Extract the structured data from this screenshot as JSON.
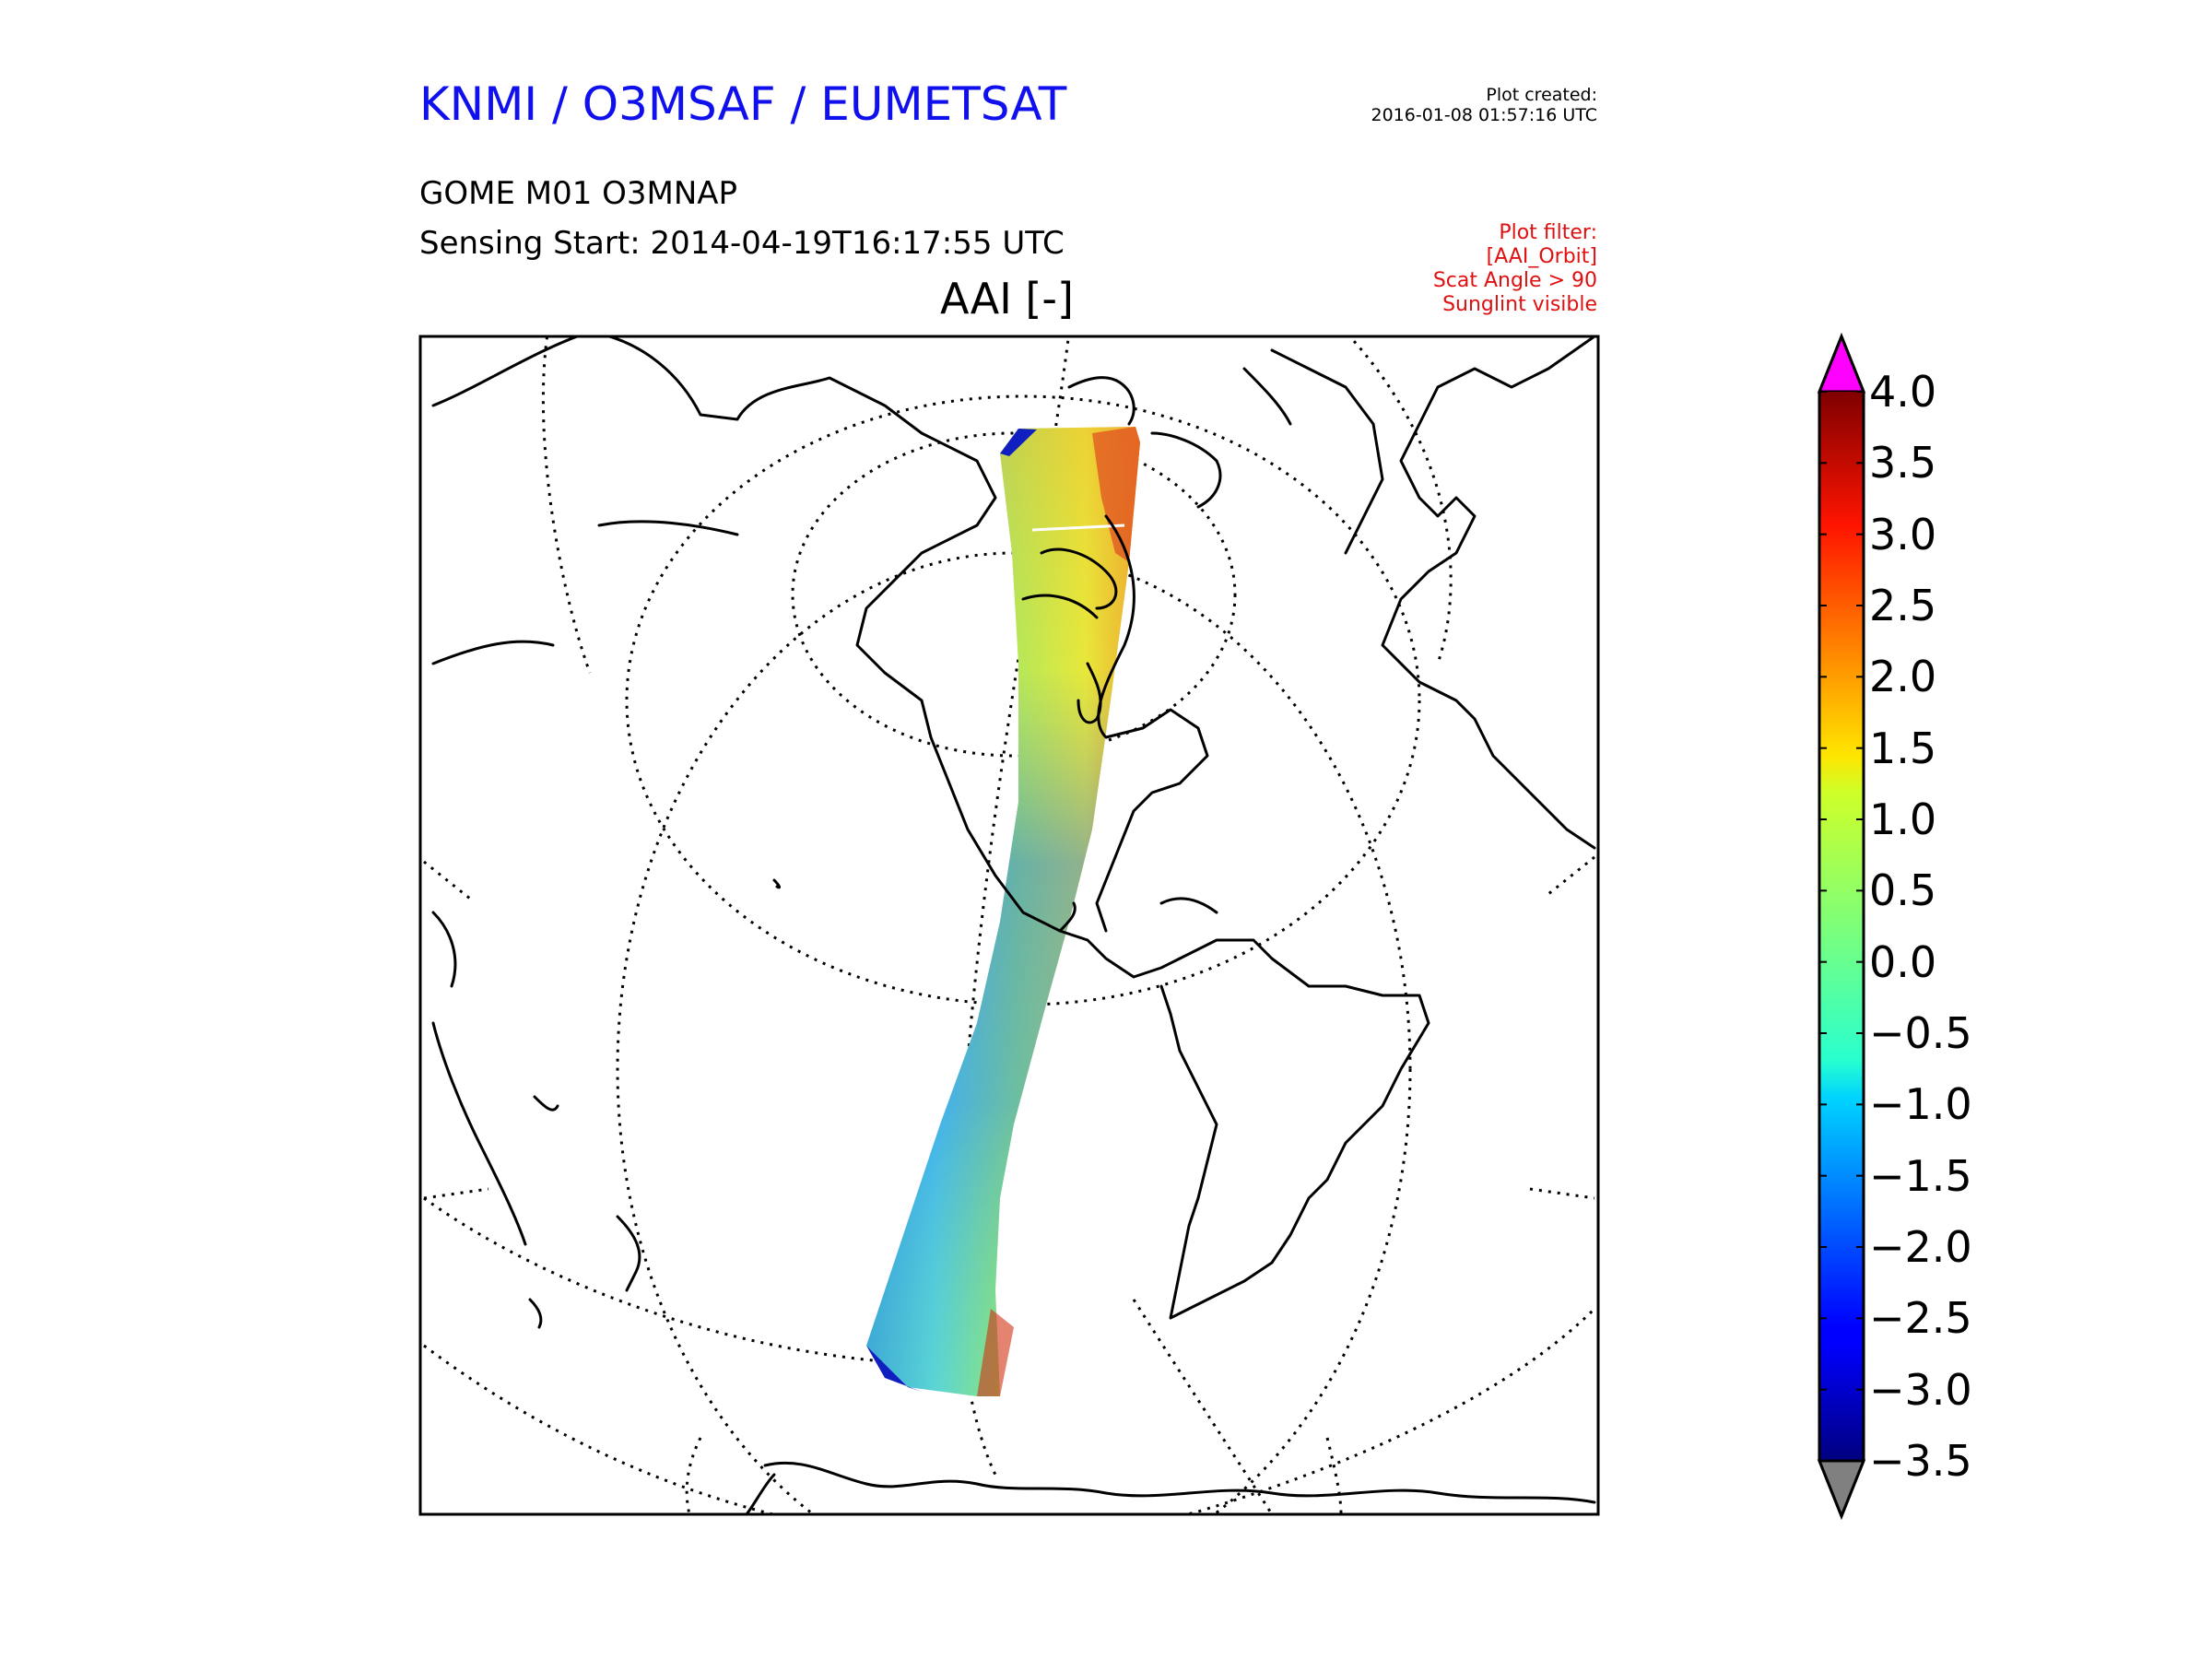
{
  "header": {
    "organization": "KNMI / O3MSAF / EUMETSAT",
    "plot_created_label": "Plot created:",
    "plot_created_time": "2016-01-08 01:57:16 UTC",
    "product": "GOME M01 O3MNAP",
    "sensing_start": "Sensing Start: 2014-04-19T16:17:55 UTC",
    "parameter": "AAI [-]"
  },
  "filters": {
    "heading": "Plot filter:",
    "items": [
      "[AAI_Orbit]",
      "Scat Angle > 90",
      "Sunglint visible"
    ],
    "color": "#e01010"
  },
  "colorbar": {
    "labels": [
      "4.0",
      "3.5",
      "3.0",
      "2.5",
      "2.0",
      "1.5",
      "1.0",
      "0.5",
      "0.0",
      "−0.5",
      "−1.0",
      "−1.5",
      "−2.0",
      "−2.5",
      "−3.0",
      "−3.5"
    ],
    "min": -3.5,
    "max": 4.0,
    "colormap": "jet",
    "over_color": "#ff00ff",
    "under_color": "#808080"
  },
  "map": {
    "projection": "orthographic",
    "graticule": "dotted",
    "swath_colormap": "jet"
  }
}
